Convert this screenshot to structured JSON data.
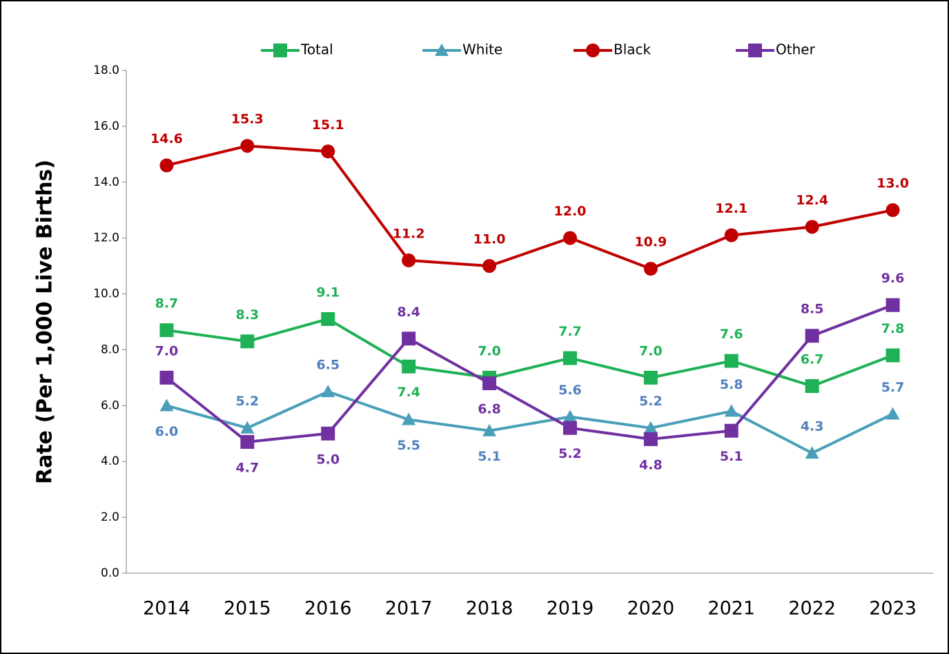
{
  "chart_data": {
    "type": "line",
    "y_axis_label": "Rate (Per 1,000 Live Births)",
    "categories": [
      "2014",
      "2015",
      "2016",
      "2017",
      "2018",
      "2019",
      "2020",
      "2021",
      "2022",
      "2023"
    ],
    "ylim": [
      0,
      18
    ],
    "yticks": [
      {
        "value": 0,
        "label": "0.0"
      },
      {
        "value": 2,
        "label": "2.0"
      },
      {
        "value": 4,
        "label": "4.0"
      },
      {
        "value": 6,
        "label": "6.0"
      },
      {
        "value": 8,
        "label": "8.0"
      },
      {
        "value": 10,
        "label": "10.0"
      },
      {
        "value": 12,
        "label": "12.0"
      },
      {
        "value": 14,
        "label": "14.0"
      },
      {
        "value": 16,
        "label": "16.0"
      },
      {
        "value": 18,
        "label": "18.0"
      }
    ],
    "grid": false,
    "legend": "top",
    "series": [
      {
        "name": "Total",
        "color": "#1fb155",
        "label_color": "#1fb155",
        "marker": "square",
        "values": [
          8.7,
          8.3,
          9.1,
          7.4,
          7.0,
          7.7,
          7.0,
          7.6,
          6.7,
          7.8
        ],
        "value_labels": [
          "8.7",
          "8.3",
          "9.1",
          "7.4",
          "7.0",
          "7.7",
          "7.0",
          "7.6",
          "6.7",
          "7.8"
        ]
      },
      {
        "name": "White",
        "color": "#4a9fb8",
        "label_color": "#4f81bd",
        "marker": "triangle",
        "values": [
          6.0,
          5.2,
          6.5,
          5.5,
          5.1,
          5.6,
          5.2,
          5.8,
          4.3,
          5.7
        ],
        "value_labels": [
          "6.0",
          "5.2",
          "6.5",
          "5.5",
          "5.1",
          "5.6",
          "5.2",
          "5.8",
          "4.3",
          "5.7"
        ]
      },
      {
        "name": "Black",
        "color": "#c00000",
        "label_color": "#c00000",
        "marker": "circle",
        "values": [
          14.6,
          15.3,
          15.1,
          11.2,
          11.0,
          12.0,
          10.9,
          12.1,
          12.4,
          13.0
        ],
        "value_labels": [
          "14.6",
          "15.3",
          "15.1",
          "11.2",
          "11.0",
          "12.0",
          "10.9",
          "12.1",
          "12.4",
          "13.0"
        ]
      },
      {
        "name": "Other",
        "color": "#7030a0",
        "label_color": "#7030a0",
        "marker": "square",
        "values": [
          7.0,
          4.7,
          5.0,
          8.4,
          6.8,
          5.2,
          4.8,
          5.1,
          8.5,
          9.6
        ],
        "value_labels": [
          "7.0",
          "4.7",
          "5.0",
          "8.4",
          "6.8",
          "5.2",
          "4.8",
          "5.1",
          "8.5",
          "9.6"
        ]
      }
    ]
  }
}
